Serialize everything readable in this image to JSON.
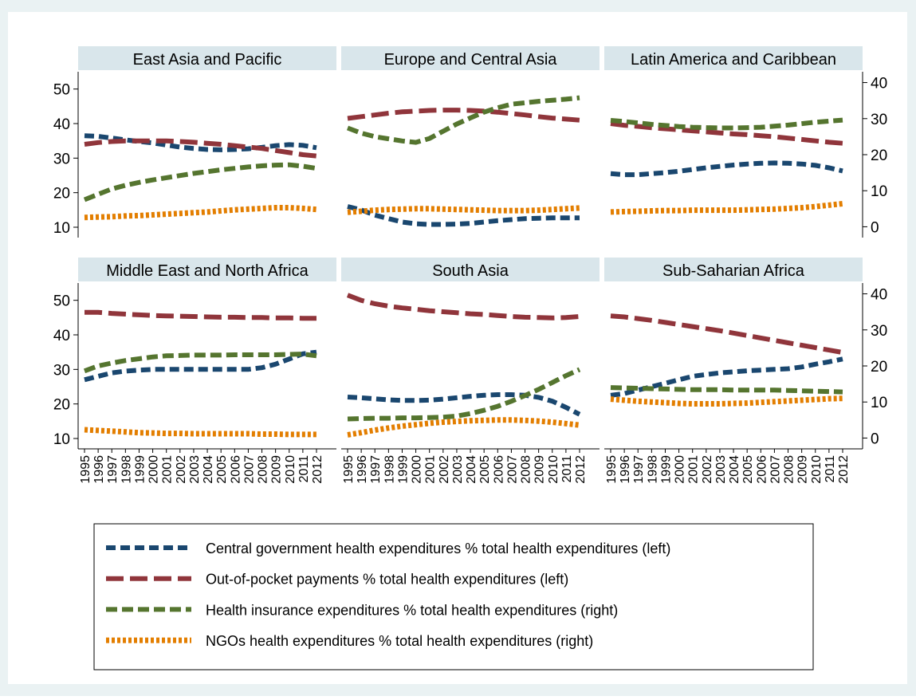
{
  "chart_data": [
    {
      "type": "line",
      "title": "East Asia and Pacific",
      "x": [
        1995,
        1996,
        1997,
        1998,
        1999,
        2000,
        2001,
        2002,
        2003,
        2004,
        2005,
        2006,
        2007,
        2008,
        2009,
        2010,
        2011,
        2012
      ],
      "ylim": [
        7,
        55
      ],
      "yticks": [
        10,
        20,
        30,
        40,
        50
      ],
      "y2lim": [
        -3,
        43
      ],
      "y2ticks": [
        0,
        10,
        20,
        30,
        40
      ],
      "series": [
        {
          "name": "Central government health expenditures % total health expenditures (left)",
          "color": "#1a476f",
          "values": [
            36.5,
            36.3,
            35.8,
            35.3,
            34.8,
            34.4,
            33.8,
            33.2,
            32.8,
            32.5,
            32.4,
            32.5,
            32.7,
            33.1,
            33.6,
            33.9,
            33.7,
            33.0
          ]
        },
        {
          "name": "Out-of-pocket payments % total health expenditures (left)",
          "color": "#90353b",
          "values": [
            34,
            34.5,
            34.8,
            35,
            35,
            35,
            35,
            34.8,
            34.6,
            34.3,
            34,
            33.6,
            33.2,
            32.8,
            32.2,
            31.6,
            31.0,
            30.6
          ]
        },
        {
          "name": "Health insurance expenditures % total health expenditures (right)",
          "color": "#55752f",
          "axis": "y2",
          "values": [
            7.5,
            9,
            10.5,
            11.5,
            12.3,
            13,
            13.6,
            14.2,
            14.8,
            15.3,
            15.8,
            16.2,
            16.6,
            16.9,
            17.1,
            17.2,
            16.8,
            16.2
          ]
        },
        {
          "name": "NGOs health expenditures % total health expenditures (right)",
          "color": "#e37e00",
          "axis": "y2",
          "values": [
            2.6,
            2.7,
            2.8,
            3,
            3.1,
            3.3,
            3.5,
            3.7,
            3.9,
            4.1,
            4.4,
            4.7,
            4.9,
            5.1,
            5.3,
            5.3,
            5.1,
            4.8
          ]
        }
      ]
    },
    {
      "type": "line",
      "title": "Europe and Central Asia",
      "x": [
        1995,
        1996,
        1997,
        1998,
        1999,
        2000,
        2001,
        2002,
        2003,
        2004,
        2005,
        2006,
        2007,
        2008,
        2009,
        2010,
        2011,
        2012
      ],
      "ylim": [
        7,
        55
      ],
      "yticks": [
        10,
        20,
        30,
        40,
        50
      ],
      "y2lim": [
        -3,
        43
      ],
      "y2ticks": [
        0,
        10,
        20,
        30,
        40
      ],
      "series": [
        {
          "name": "Central government health expenditures % total health expenditures (left)",
          "color": "#1a476f",
          "values": [
            16,
            15,
            13.5,
            12.5,
            11.5,
            11,
            10.8,
            10.8,
            10.9,
            11.1,
            11.5,
            11.9,
            12.2,
            12.5,
            12.6,
            12.7,
            12.7,
            12.7
          ]
        },
        {
          "name": "Out-of-pocket payments % total health expenditures (left)",
          "color": "#90353b",
          "values": [
            41.5,
            42,
            42.5,
            43,
            43.4,
            43.6,
            43.8,
            43.9,
            43.9,
            43.8,
            43.6,
            43.3,
            42.9,
            42.5,
            42,
            41.6,
            41.3,
            41
          ]
        },
        {
          "name": "Health insurance expenditures % total health expenditures (right)",
          "color": "#55752f",
          "axis": "y2",
          "values": [
            27.4,
            26,
            25,
            24.4,
            23.8,
            23.4,
            24.5,
            26.5,
            28.5,
            30.2,
            31.8,
            33,
            34,
            34.4,
            34.8,
            35.1,
            35.4,
            35.8
          ]
        },
        {
          "name": "NGOs health expenditures % total health expenditures (right)",
          "color": "#e37e00",
          "axis": "y2",
          "values": [
            4,
            4.3,
            4.6,
            4.8,
            4.9,
            5,
            5,
            4.9,
            4.8,
            4.7,
            4.6,
            4.5,
            4.5,
            4.5,
            4.6,
            4.8,
            5,
            5.2
          ]
        }
      ]
    },
    {
      "type": "line",
      "title": "Latin America and Caribbean",
      "x": [
        1995,
        1996,
        1997,
        1998,
        1999,
        2000,
        2001,
        2002,
        2003,
        2004,
        2005,
        2006,
        2007,
        2008,
        2009,
        2010,
        2011,
        2012
      ],
      "ylim": [
        7,
        55
      ],
      "yticks": [
        10,
        20,
        30,
        40,
        50
      ],
      "y2lim": [
        -3,
        43
      ],
      "y2ticks": [
        0,
        10,
        20,
        30,
        40
      ],
      "series": [
        {
          "name": "Central government health expenditures % total health expenditures (left)",
          "color": "#1a476f",
          "values": [
            25.5,
            25.2,
            25.2,
            25.5,
            25.8,
            26.2,
            26.7,
            27.2,
            27.6,
            28,
            28.3,
            28.5,
            28.6,
            28.5,
            28.3,
            27.9,
            27.2,
            26.3
          ]
        },
        {
          "name": "Out-of-pocket payments % total health expenditures (left)",
          "color": "#90353b",
          "values": [
            40,
            39.5,
            39.2,
            38.8,
            38.5,
            38.2,
            37.9,
            37.6,
            37.3,
            37,
            36.8,
            36.5,
            36.2,
            35.8,
            35.4,
            35,
            34.6,
            34.3
          ]
        },
        {
          "name": "Health insurance expenditures % total health expenditures (right)",
          "color": "#55752f",
          "axis": "y2",
          "values": [
            29.5,
            29.2,
            28.8,
            28.4,
            28.1,
            27.8,
            27.6,
            27.5,
            27.4,
            27.4,
            27.5,
            27.6,
            27.9,
            28.2,
            28.6,
            29,
            29.3,
            29.6
          ]
        },
        {
          "name": "NGOs health expenditures % total health expenditures (right)",
          "color": "#e37e00",
          "axis": "y2",
          "values": [
            4.1,
            4.2,
            4.3,
            4.4,
            4.5,
            4.5,
            4.6,
            4.6,
            4.6,
            4.6,
            4.7,
            4.8,
            4.9,
            5.1,
            5.3,
            5.6,
            6,
            6.4
          ]
        }
      ]
    },
    {
      "type": "line",
      "title": "Middle East and North Africa",
      "x": [
        1995,
        1996,
        1997,
        1998,
        1999,
        2000,
        2001,
        2002,
        2003,
        2004,
        2005,
        2006,
        2007,
        2008,
        2009,
        2010,
        2011,
        2012
      ],
      "ylim": [
        7,
        55
      ],
      "yticks": [
        10,
        20,
        30,
        40,
        50
      ],
      "y2lim": [
        -3,
        43
      ],
      "y2ticks": [
        0,
        10,
        20,
        30,
        40
      ],
      "series": [
        {
          "name": "Central government health expenditures % total health expenditures (left)",
          "color": "#1a476f",
          "values": [
            27,
            28,
            29,
            29.5,
            29.8,
            30,
            30,
            30,
            30,
            30,
            30,
            30,
            30,
            30.5,
            31.5,
            33,
            34.5,
            35
          ]
        },
        {
          "name": "Out-of-pocket payments % total health expenditures (left)",
          "color": "#90353b",
          "values": [
            46.5,
            46.5,
            46.2,
            46,
            45.8,
            45.6,
            45.5,
            45.4,
            45.3,
            45.2,
            45.1,
            45.1,
            45,
            45,
            44.9,
            44.9,
            44.8,
            44.8
          ]
        },
        {
          "name": "Health insurance expenditures % total health expenditures (right)",
          "color": "#55752f",
          "axis": "y2",
          "values": [
            18.6,
            20,
            20.8,
            21.5,
            22,
            22.5,
            22.8,
            22.9,
            23,
            23,
            23,
            23.1,
            23.1,
            23.1,
            23.1,
            23.2,
            23.3,
            22.8
          ]
        },
        {
          "name": "NGOs health expenditures % total health expenditures (right)",
          "color": "#e37e00",
          "axis": "y2",
          "values": [
            2.3,
            2.1,
            1.9,
            1.7,
            1.5,
            1.4,
            1.3,
            1.3,
            1.2,
            1.2,
            1.2,
            1.2,
            1.2,
            1.1,
            1.1,
            1.0,
            1.0,
            1.0
          ]
        }
      ]
    },
    {
      "type": "line",
      "title": "South Asia",
      "x": [
        1995,
        1996,
        1997,
        1998,
        1999,
        2000,
        2001,
        2002,
        2003,
        2004,
        2005,
        2006,
        2007,
        2008,
        2009,
        2010,
        2011,
        2012
      ],
      "ylim": [
        7,
        55
      ],
      "yticks": [
        10,
        20,
        30,
        40,
        50
      ],
      "y2lim": [
        -3,
        43
      ],
      "y2ticks": [
        0,
        10,
        20,
        30,
        40
      ],
      "series": [
        {
          "name": "Central government health expenditures % total health expenditures (left)",
          "color": "#1a476f",
          "values": [
            22,
            21.8,
            21.5,
            21.2,
            21,
            21,
            21.1,
            21.4,
            21.8,
            22.2,
            22.5,
            22.7,
            22.7,
            22.5,
            21.9,
            20.8,
            19,
            17
          ]
        },
        {
          "name": "Out-of-pocket payments % total health expenditures (left)",
          "color": "#90353b",
          "values": [
            51.5,
            50,
            49,
            48.3,
            47.8,
            47.4,
            47,
            46.7,
            46.4,
            46.1,
            45.9,
            45.6,
            45.3,
            45.1,
            45,
            44.9,
            45,
            45.3
          ]
        },
        {
          "name": "Health insurance expenditures % total health expenditures (right)",
          "color": "#55752f",
          "axis": "y2",
          "values": [
            5.3,
            5.4,
            5.5,
            5.5,
            5.6,
            5.6,
            5.7,
            5.8,
            6.1,
            6.8,
            7.7,
            8.8,
            10.2,
            11.8,
            13.5,
            15.4,
            17.3,
            19
          ]
        },
        {
          "name": "NGOs health expenditures % total health expenditures (right)",
          "color": "#e37e00",
          "axis": "y2",
          "values": [
            0.9,
            1.5,
            2.2,
            2.8,
            3.3,
            3.7,
            4.1,
            4.4,
            4.6,
            4.8,
            4.9,
            5,
            5,
            4.9,
            4.7,
            4.4,
            4,
            3.6
          ]
        }
      ]
    },
    {
      "type": "line",
      "title": "Sub-Saharian Africa",
      "x": [
        1995,
        1996,
        1997,
        1998,
        1999,
        2000,
        2001,
        2002,
        2003,
        2004,
        2005,
        2006,
        2007,
        2008,
        2009,
        2010,
        2011,
        2012
      ],
      "ylim": [
        7,
        55
      ],
      "yticks": [
        10,
        20,
        30,
        40,
        50
      ],
      "y2lim": [
        -3,
        43
      ],
      "y2ticks": [
        0,
        10,
        20,
        30,
        40
      ],
      "series": [
        {
          "name": "Central government health expenditures % total health expenditures (left)",
          "color": "#1a476f",
          "values": [
            22.5,
            23,
            24,
            25,
            26,
            27,
            28,
            28.5,
            29,
            29.3,
            29.6,
            29.8,
            30,
            30.2,
            30.7,
            31.5,
            32.2,
            33
          ]
        },
        {
          "name": "Out-of-pocket payments % total health expenditures (left)",
          "color": "#90353b",
          "values": [
            45.5,
            45.2,
            44.7,
            44.2,
            43.6,
            43,
            42.4,
            41.8,
            41.2,
            40.5,
            39.8,
            39.1,
            38.4,
            37.7,
            37,
            36.3,
            35.6,
            34.9
          ]
        },
        {
          "name": "Health insurance expenditures % total health expenditures (right)",
          "color": "#55752f",
          "axis": "y2",
          "values": [
            14,
            13.9,
            13.8,
            13.7,
            13.6,
            13.5,
            13.4,
            13.4,
            13.4,
            13.3,
            13.3,
            13.3,
            13.3,
            13.2,
            13.1,
            13,
            12.9,
            12.8
          ]
        },
        {
          "name": "NGOs health expenditures % total health expenditures (right)",
          "color": "#e37e00",
          "axis": "y2",
          "values": [
            10.8,
            10.5,
            10.2,
            10,
            9.8,
            9.6,
            9.5,
            9.5,
            9.5,
            9.6,
            9.7,
            9.9,
            10.1,
            10.3,
            10.5,
            10.7,
            10.9,
            11
          ]
        }
      ]
    }
  ]
}
